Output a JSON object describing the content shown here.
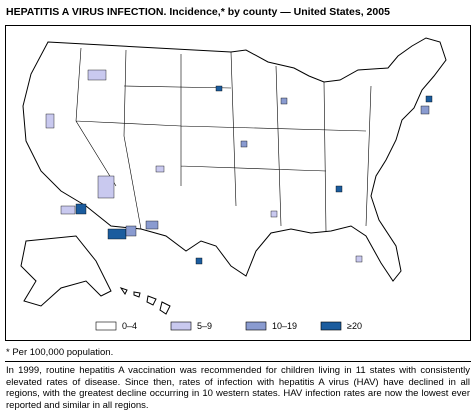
{
  "header": {
    "title": "HEPATITIS A VIRUS INFECTION. Incidence,* by county — United States, 2005"
  },
  "legend": [
    {
      "label": "0–4",
      "color": "#ffffff"
    },
    {
      "label": "5–9",
      "color": "#c9c9ef"
    },
    {
      "label": "10–19",
      "color": "#8a9bd0"
    },
    {
      "label": "≥20",
      "color": "#1b5c9e"
    }
  ],
  "footnote": "* Per 100,000 population.",
  "text": "In 1999, routine hepatitis A vaccination was recommended for children living in 11 states with consistently elevated rates of disease. Since then, rates of infection with hepatitis A virus (HAV) have declined in all regions, with the greatest decline occurring in 10 western states. HAV infection rates are now the lowest ever reported and similar in all regions."
}
